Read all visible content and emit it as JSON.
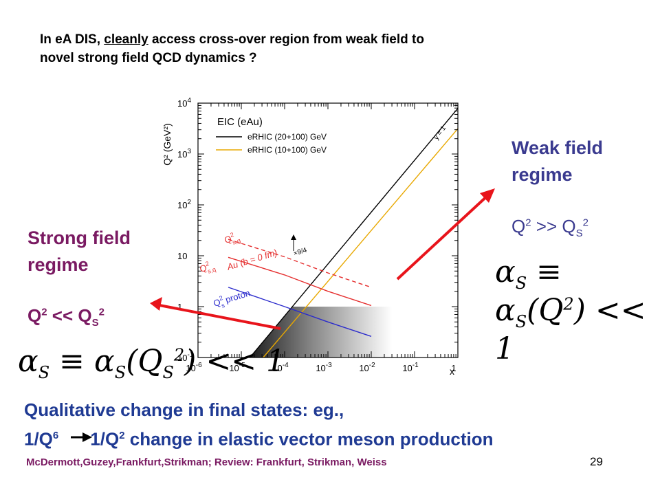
{
  "slide": {
    "title_line1_pre": "In eA DIS,  ",
    "title_line1_underlined": "cleanly",
    "title_line1_post": " access cross-over region from weak field to",
    "title_line2": "novel strong field QCD dynamics ?",
    "weak_regime_line1": "Weak field",
    "weak_regime_line2": "regime",
    "strong_regime_line1": "Strong field",
    "strong_regime_line2": "regime",
    "weak_relation": {
      "q": "Q",
      "q_exp": "2",
      "op": " >> Q",
      "s": "S",
      "s_exp": "2"
    },
    "strong_relation": {
      "q": "Q",
      "q_exp": "2",
      "op": " << Q",
      "s": "S",
      "s_exp": "2"
    },
    "weak_formula": {
      "a1": "α",
      "s1": "S",
      "eq": " ≡ α",
      "s2": "S",
      "mid": "(Q",
      "exp": "2",
      "end": ") << 1"
    },
    "strong_formula": {
      "a1": "α",
      "s1": "S",
      "eq": " ≡ α",
      "s2": "S",
      "mid": "(Q",
      "sub": "S",
      "exp": "2",
      "end": ") << 1"
    },
    "conclusion_line1": "Qualitative change in final states: eg.,",
    "conclusion_q6": "1/Q",
    "conclusion_q6_exp": "6",
    "conclusion_q2": "1/Q",
    "conclusion_q2_exp": "2",
    "conclusion_rest": "  change in elastic vector meson production",
    "references": "McDermott,Guzey,Frankfurt,Strikman; Review: Frankfurt, Strikman, Weiss",
    "page_number": "29",
    "colors": {
      "weak": "#3a3a8f",
      "strong": "#7a1a62",
      "conclusion": "#1f3a93",
      "arrow": "#e8141b"
    }
  },
  "chart_data": {
    "type": "line",
    "title": "EIC (eAu)",
    "xlabel": "x",
    "ylabel": "Q² (GeV²)",
    "x_scale": "log",
    "y_scale": "log",
    "xlim": [
      1e-06,
      1
    ],
    "ylim": [
      0.1,
      10000
    ],
    "x_ticks": [
      {
        "value": 1e-06,
        "base": "10",
        "exp": "-6"
      },
      {
        "value": 1e-05,
        "base": "10",
        "exp": "-5"
      },
      {
        "value": 0.0001,
        "base": "10",
        "exp": "-4"
      },
      {
        "value": 0.001,
        "base": "10",
        "exp": "-3"
      },
      {
        "value": 0.01,
        "base": "10",
        "exp": "-2"
      },
      {
        "value": 0.1,
        "base": "10",
        "exp": "-1"
      },
      {
        "value": 1,
        "base": "1",
        "exp": ""
      }
    ],
    "y_ticks": [
      {
        "value": 0.1,
        "base": "10",
        "exp": "-1"
      },
      {
        "value": 1,
        "base": "1",
        "exp": ""
      },
      {
        "value": 10,
        "base": "10",
        "exp": ""
      },
      {
        "value": 100,
        "base": "10",
        "exp": "2"
      },
      {
        "value": 1000,
        "base": "10",
        "exp": "3"
      },
      {
        "value": 10000,
        "base": "10",
        "exp": "4"
      }
    ],
    "series": [
      {
        "name": "eRHIC (20+100) GeV",
        "color": "#000000",
        "dash": "",
        "x": [
          1.58e-05,
          1
        ],
        "y": [
          0.1,
          7900
        ]
      },
      {
        "name": "eRHIC (10+100) GeV",
        "color": "#e8a800",
        "dash": "",
        "x": [
          3.2e-05,
          1
        ],
        "y": [
          0.1,
          3150
        ]
      },
      {
        "color": "#e53030",
        "dash": "6,4",
        "x": [
          5e-06,
          0.0001,
          0.001,
          0.01
        ],
        "y": [
          21,
          9.5,
          4.6,
          2.4
        ]
      },
      {
        "color": "#e53030",
        "dash": "",
        "x": [
          5e-06,
          0.0001,
          0.001,
          0.01
        ],
        "y": [
          9.3,
          4.2,
          2.0,
          1.05
        ]
      },
      {
        "color": "#2a2acc",
        "dash": "",
        "x": [
          5e-06,
          0.0001,
          0.001,
          0.01
        ],
        "y": [
          2.4,
          1.0,
          0.5,
          0.26
        ]
      }
    ],
    "shaded_region": {
      "x_start": 1.58e-05,
      "x_end": 0.03,
      "y_top": 1.0,
      "y_bottom": 0.1
    },
    "annotations": {
      "y_equals_1": "y = 1",
      "qsg_label": {
        "q": "Q",
        "exp": "2",
        "sub": "s,g"
      },
      "qsq_label": {
        "q": "Q",
        "exp": "2",
        "sub": "s,q"
      },
      "au_label": "Au (b = 0 fm)",
      "factor_label": "×9/4",
      "proton_label": {
        "q": "Q",
        "exp": "2",
        "sub": "s",
        "text": " proton"
      }
    }
  }
}
